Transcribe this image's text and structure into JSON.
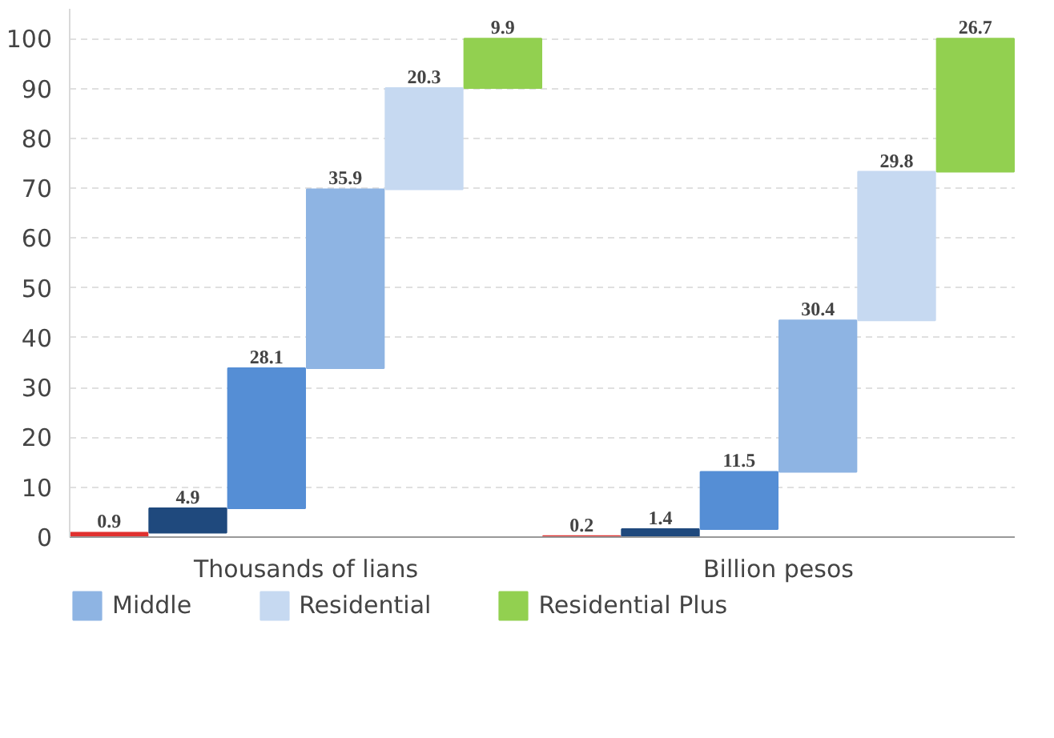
{
  "chart_data": {
    "type": "bar",
    "categories": [
      "Thousands of lians",
      "Billion pesos"
    ],
    "series": [
      {
        "name": null,
        "color": "#e0312f",
        "values": [
          0.9,
          0.2
        ],
        "base": [
          0,
          0
        ]
      },
      {
        "name": null,
        "color": "#1f497d",
        "values": [
          4.9,
          1.4
        ],
        "base": [
          0.9,
          0.2
        ]
      },
      {
        "name": null,
        "color": "#558ed5",
        "values": [
          28.1,
          11.5
        ],
        "base": [
          5.8,
          1.6
        ]
      },
      {
        "name": "Middle",
        "color": "#8eb4e3",
        "values": [
          35.9,
          30.4
        ],
        "base": [
          33.9,
          13.1
        ]
      },
      {
        "name": "Residential",
        "color": "#c6d9f1",
        "values": [
          20.3,
          29.8
        ],
        "base": [
          69.8,
          43.5
        ]
      },
      {
        "name": "Residential Plus",
        "color": "#92d050",
        "values": [
          9.9,
          26.7
        ],
        "base": [
          90.1,
          73.3
        ]
      }
    ],
    "ylim": [
      0,
      106
    ],
    "yticks": [
      0,
      10,
      20,
      30,
      40,
      50,
      60,
      70,
      80,
      90,
      100
    ],
    "grid": "y",
    "legend": "bottom",
    "data_labels": true
  }
}
